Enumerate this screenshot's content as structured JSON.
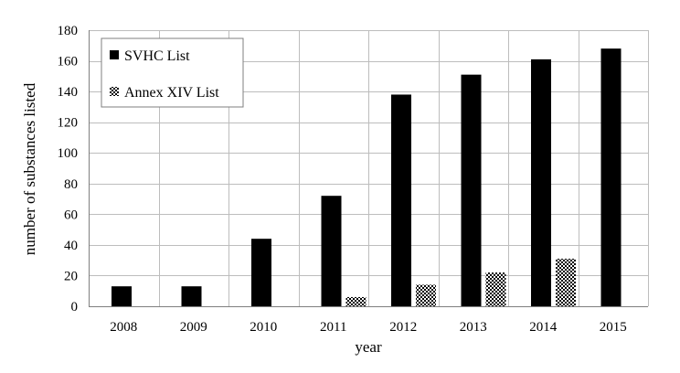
{
  "chart_data": {
    "type": "bar",
    "title": "",
    "xlabel": "year",
    "ylabel": "number  of  substances  listed",
    "categories": [
      "2008",
      "2009",
      "2010",
      "2011",
      "2012",
      "2013",
      "2014",
      "2015"
    ],
    "series": [
      {
        "name": "SVHC List",
        "values": [
          13,
          13,
          44,
          72,
          138,
          151,
          161,
          168
        ],
        "color": "#000000",
        "pattern": "solid"
      },
      {
        "name": "Annex XIV List",
        "values": [
          0,
          0,
          0,
          6,
          14,
          22,
          31,
          0
        ],
        "color": "#000000",
        "pattern": "checker"
      }
    ],
    "ylim": [
      0,
      180
    ],
    "yticks": [
      0,
      20,
      40,
      60,
      80,
      100,
      120,
      140,
      160,
      180
    ],
    "grid": {
      "horizontal": true,
      "vertical": true
    },
    "legend": {
      "position": "top-left"
    }
  }
}
